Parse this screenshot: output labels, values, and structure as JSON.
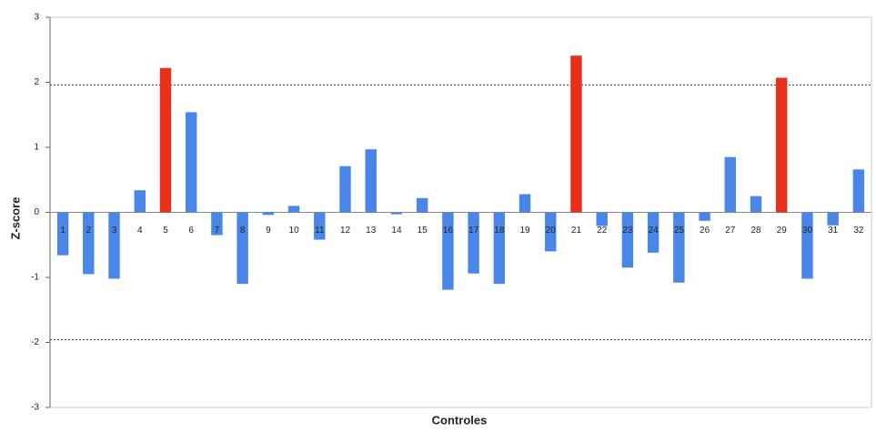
{
  "chart_data": {
    "type": "bar",
    "x_label": "Controles",
    "y_label": "Z-score",
    "categories": [
      "1",
      "2",
      "3",
      "4",
      "5",
      "6",
      "7",
      "8",
      "9",
      "10",
      "11",
      "12",
      "13",
      "14",
      "15",
      "16",
      "17",
      "18",
      "19",
      "20",
      "21",
      "22",
      "23",
      "24",
      "25",
      "26",
      "27",
      "28",
      "29",
      "30",
      "31",
      "32"
    ],
    "values": [
      -0.66,
      -0.95,
      -1.02,
      0.34,
      2.22,
      1.54,
      -0.35,
      -1.1,
      -0.04,
      0.1,
      -0.42,
      0.71,
      0.97,
      -0.03,
      0.22,
      -1.19,
      -0.94,
      -1.1,
      0.28,
      -0.6,
      2.41,
      -0.21,
      -0.85,
      -0.62,
      -1.08,
      -0.13,
      0.85,
      0.25,
      2.07,
      -1.02,
      -0.2,
      0.66
    ],
    "colors": [
      "#4a86e8",
      "#4a86e8",
      "#4a86e8",
      "#4a86e8",
      "#e8301c",
      "#4a86e8",
      "#4a86e8",
      "#4a86e8",
      "#4a86e8",
      "#4a86e8",
      "#4a86e8",
      "#4a86e8",
      "#4a86e8",
      "#4a86e8",
      "#4a86e8",
      "#4a86e8",
      "#4a86e8",
      "#4a86e8",
      "#4a86e8",
      "#4a86e8",
      "#e8301c",
      "#4a86e8",
      "#4a86e8",
      "#4a86e8",
      "#4a86e8",
      "#4a86e8",
      "#4a86e8",
      "#4a86e8",
      "#e8301c",
      "#4a86e8",
      "#4a86e8",
      "#4a86e8"
    ],
    "reference_lines": [
      1.96,
      -1.96
    ],
    "ylim": [
      -3,
      3
    ],
    "yticks": [
      -3,
      -2,
      -1,
      0,
      1,
      2,
      3
    ]
  }
}
